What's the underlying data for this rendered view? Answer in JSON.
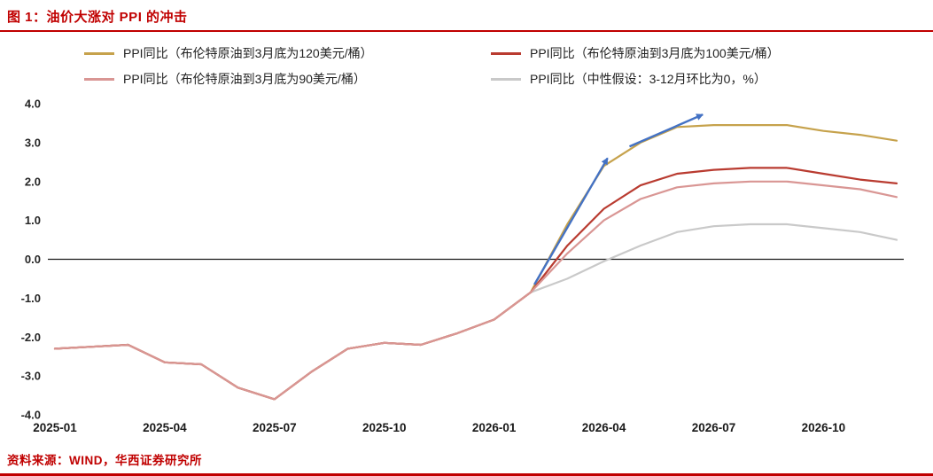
{
  "header": {
    "title": "图 1：油价大涨对 PPI 的冲击"
  },
  "footer": {
    "source": "资料来源：WIND，华西证券研究所"
  },
  "colors": {
    "accent_red": "#c00000",
    "arrow_blue": "#4472c4",
    "zero_axis": "#1a1a1a"
  },
  "chart_data": {
    "type": "line",
    "title": "图 1：油价大涨对 PPI 的冲击",
    "xlabel": "",
    "ylabel": "",
    "ylim": [
      -4.0,
      4.0
    ],
    "grid": false,
    "legend_position": "top",
    "x": [
      "2025-01",
      "2025-02",
      "2025-03",
      "2025-04",
      "2025-05",
      "2025-06",
      "2025-07",
      "2025-08",
      "2025-09",
      "2025-10",
      "2025-11",
      "2025-12",
      "2026-01",
      "2026-02",
      "2026-03",
      "2026-04",
      "2026-05",
      "2026-06",
      "2026-07",
      "2026-08",
      "2026-09",
      "2026-10",
      "2026-11",
      "2026-12"
    ],
    "x_tick_labels": [
      "2025-01",
      "2025-04",
      "2025-07",
      "2025-10",
      "2026-01",
      "2026-04",
      "2026-07",
      "2026-10"
    ],
    "x_tick_indices": [
      0,
      3,
      6,
      9,
      12,
      15,
      18,
      21
    ],
    "y_tick_values": [
      4.0,
      3.0,
      2.0,
      1.0,
      0.0,
      -1.0,
      -2.0,
      -3.0,
      -4.0
    ],
    "y_tick_labels": [
      "4.0",
      "3.0",
      "2.0",
      "1.0",
      "0.0",
      "-1.0",
      "-2.0",
      "-3.0",
      "-4.0"
    ],
    "series": [
      {
        "name": "PPI同比（布伦特原油到3月底为120美元/桶）",
        "color": "#c6a24c",
        "values": [
          -2.3,
          -2.25,
          -2.2,
          -2.65,
          -2.7,
          -3.3,
          -3.6,
          -2.9,
          -2.3,
          -2.15,
          -2.2,
          -1.9,
          -1.55,
          -0.85,
          0.9,
          2.4,
          3.0,
          3.4,
          3.45,
          3.45,
          3.45,
          3.3,
          3.2,
          3.05
        ]
      },
      {
        "name": "PPI同比（布伦特原油到3月底为100美元/桶）",
        "color": "#b93b30",
        "values": [
          -2.3,
          -2.25,
          -2.2,
          -2.65,
          -2.7,
          -3.3,
          -3.6,
          -2.9,
          -2.3,
          -2.15,
          -2.2,
          -1.9,
          -1.55,
          -0.85,
          0.35,
          1.3,
          1.9,
          2.2,
          2.3,
          2.35,
          2.35,
          2.2,
          2.05,
          1.95
        ]
      },
      {
        "name": "PPI同比（布伦特原油到3月底为90美元/桶）",
        "color": "#d99694",
        "values": [
          -2.3,
          -2.25,
          -2.2,
          -2.65,
          -2.7,
          -3.3,
          -3.6,
          -2.9,
          -2.3,
          -2.15,
          -2.2,
          -1.9,
          -1.55,
          -0.85,
          0.15,
          1.0,
          1.55,
          1.85,
          1.95,
          2.0,
          2.0,
          1.9,
          1.8,
          1.6
        ]
      },
      {
        "name": "PPI同比（中性假设：3-12月环比为0，%）",
        "color": "#c9c9c9",
        "values": [
          -2.3,
          -2.25,
          -2.2,
          -2.65,
          -2.7,
          -3.3,
          -3.6,
          -2.9,
          -2.3,
          -2.15,
          -2.2,
          -1.9,
          -1.55,
          -0.85,
          -0.5,
          -0.05,
          0.35,
          0.7,
          0.85,
          0.9,
          0.9,
          0.8,
          0.7,
          0.5
        ]
      }
    ],
    "annotations": [
      {
        "type": "arrow",
        "from": [
          13.1,
          -0.65
        ],
        "to": [
          15.1,
          2.6
        ]
      },
      {
        "type": "arrow",
        "from": [
          15.7,
          2.9
        ],
        "to": [
          17.7,
          3.72
        ]
      }
    ]
  }
}
